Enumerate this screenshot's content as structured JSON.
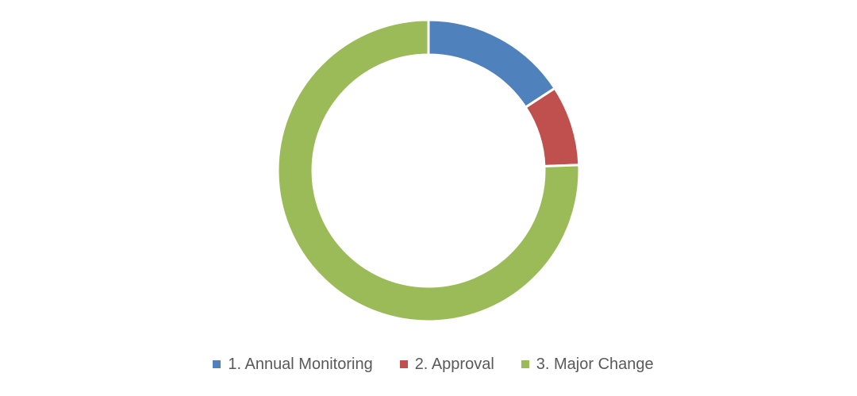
{
  "chart_data": {
    "type": "pie",
    "variant": "doughnut",
    "title": "",
    "series": [
      {
        "name": "1. Annual Monitoring",
        "value": 15.8,
        "color": "#4F81BD"
      },
      {
        "name": "2. Approval",
        "value": 8.6,
        "color": "#C0504D"
      },
      {
        "name": "3. Major Change",
        "value": 75.6,
        "color": "#9BBB59"
      }
    ],
    "legend_position": "bottom"
  }
}
